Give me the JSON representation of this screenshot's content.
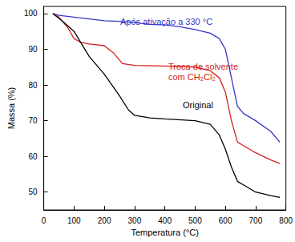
{
  "chart_data": {
    "type": "line",
    "x_label": "Temperatura (°C)",
    "y_label": "Massa (%)",
    "xlim": [
      0,
      800
    ],
    "xticks": [
      0,
      100,
      200,
      300,
      400,
      500,
      600,
      700,
      800
    ],
    "ylim": [
      45,
      102
    ],
    "yticks": [
      50,
      60,
      70,
      80,
      90,
      100
    ],
    "grid": false,
    "series": [
      {
        "name": "Após ativação a 330 °C",
        "color": "#3535c8",
        "x": [
          30,
          50,
          100,
          150,
          200,
          250,
          300,
          350,
          400,
          450,
          500,
          550,
          580,
          600,
          620,
          640,
          660,
          700,
          750,
          780
        ],
        "values": [
          100,
          99.5,
          99,
          98.5,
          98,
          97.8,
          97.5,
          97,
          96.8,
          96.3,
          95.5,
          94.5,
          93,
          90,
          82,
          74,
          72,
          70,
          67,
          64
        ]
      },
      {
        "name": "Troca de solvente\ncom CH₂Cl₂",
        "color": "#d42020",
        "x": [
          30,
          50,
          80,
          100,
          120,
          150,
          200,
          230,
          260,
          300,
          400,
          500,
          550,
          580,
          600,
          620,
          640,
          660,
          700,
          750,
          780
        ],
        "values": [
          100,
          99,
          96,
          93,
          92,
          91.5,
          91,
          89,
          86,
          85.5,
          85.3,
          85,
          84,
          82,
          78,
          70,
          64,
          63,
          61,
          59,
          58
        ]
      },
      {
        "name": "Original",
        "color": "#000000",
        "x": [
          30,
          60,
          100,
          150,
          200,
          250,
          280,
          300,
          350,
          400,
          500,
          550,
          580,
          600,
          620,
          640,
          660,
          700,
          750,
          780
        ],
        "values": [
          100,
          98,
          95,
          88,
          83,
          77,
          73,
          71.5,
          70.8,
          70.5,
          70,
          69,
          66,
          62,
          57,
          53,
          52,
          50,
          49,
          48.5
        ]
      }
    ]
  }
}
